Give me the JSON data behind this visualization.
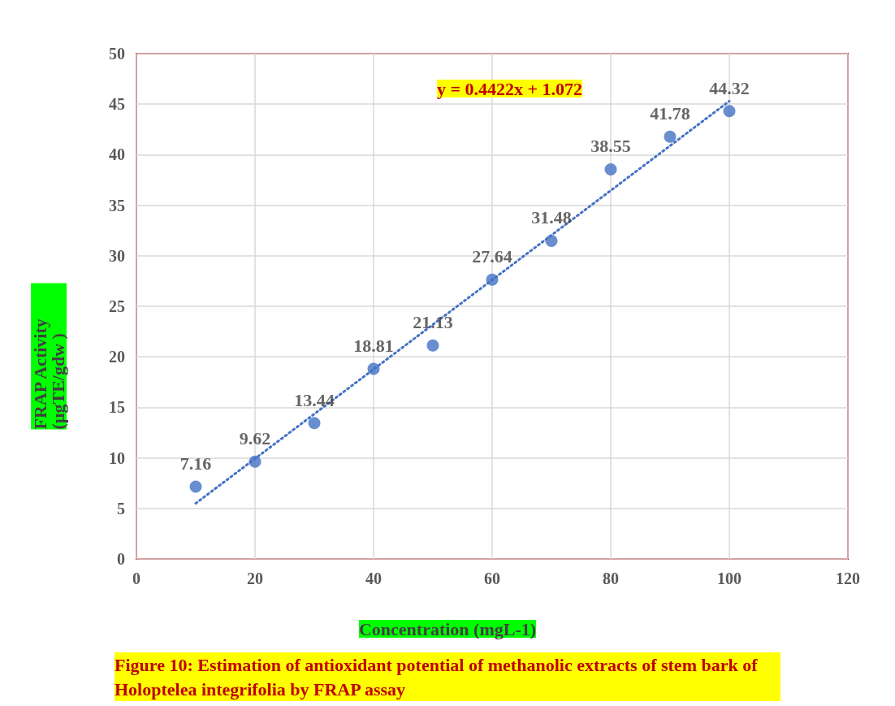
{
  "chart_data": {
    "type": "scatter",
    "title": "Figure 10: Estimation of antioxidant potential of methanolic extracts of stem bark of Holoptelea integrifolia by FRAP assay",
    "xlabel": "Concentration (mgL-1)",
    "ylabel": "FRAP Activity (µgTE/gdw )",
    "annotations": [
      "y = 0.4422x + 1.072"
    ],
    "series": [
      {
        "color": "#4472c4",
        "x": [
          10,
          20,
          30,
          40,
          50,
          60,
          70,
          80,
          90,
          100
        ],
        "values": [
          7.16,
          9.62,
          13.44,
          18.81,
          21.13,
          27.64,
          31.48,
          38.55,
          41.78,
          44.32
        ],
        "value_labels": [
          "7.16",
          "9.62",
          "13.44",
          "18.81",
          "21.13",
          "27.64",
          "31.48",
          "38.55",
          "41.78",
          "44.32"
        ]
      },
      {
        "type": "line",
        "color": "#4472c4",
        "marker": "none",
        "line_style": "dotted",
        "x": [
          10,
          100
        ],
        "values": [
          5.5,
          45.3
        ]
      }
    ],
    "marker": "circle",
    "grid": true,
    "xlim": [
      0,
      120
    ],
    "xticks": [
      0,
      20,
      40,
      60,
      80,
      100,
      120
    ],
    "ylim": [
      0,
      50
    ],
    "yticks": [
      0,
      5,
      10,
      15,
      20,
      25,
      30,
      35,
      40,
      45,
      50
    ]
  }
}
